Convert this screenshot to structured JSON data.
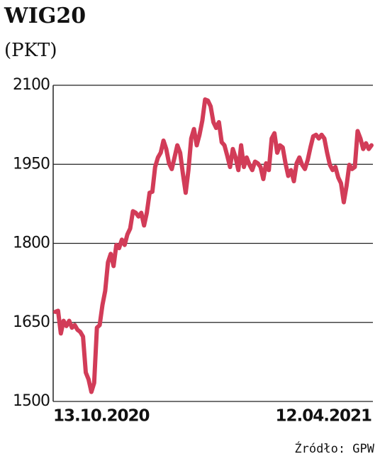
{
  "chart_data": {
    "type": "line",
    "title": "WIG20",
    "subtitle": "(PKT)",
    "source": "Źródło: GPW",
    "categories": [
      "13.10.2020",
      null,
      null,
      null,
      null,
      null,
      null,
      null,
      null,
      null,
      null,
      null,
      null,
      null,
      null,
      null,
      null,
      null,
      null,
      null,
      null,
      null,
      null,
      null,
      null,
      null,
      null,
      null,
      null,
      null,
      null,
      null,
      null,
      null,
      null,
      null,
      null,
      null,
      null,
      null,
      null,
      null,
      null,
      null,
      null,
      null,
      null,
      null,
      null,
      null,
      null,
      null,
      null,
      null,
      null,
      null,
      null,
      null,
      null,
      null,
      null,
      null,
      null,
      null,
      null,
      null,
      null,
      null,
      null,
      null,
      null,
      null,
      null,
      null,
      null,
      null,
      null,
      null,
      null,
      null,
      null,
      null,
      null,
      null,
      null,
      null,
      null,
      null,
      null,
      null,
      null,
      null,
      null,
      null,
      null,
      null,
      null,
      null,
      null,
      null,
      null,
      null,
      null,
      null,
      null,
      null,
      null,
      null,
      null,
      null,
      null,
      null,
      null,
      null,
      "12.04.2021"
    ],
    "values": [
      1670,
      1672,
      1629,
      1653,
      1643,
      1653,
      1640,
      1645,
      1636,
      1632,
      1623,
      1555,
      1542,
      1518,
      1535,
      1640,
      1645,
      1683,
      1710,
      1764,
      1780,
      1757,
      1797,
      1791,
      1807,
      1797,
      1817,
      1828,
      1861,
      1858,
      1851,
      1858,
      1834,
      1858,
      1896,
      1898,
      1945,
      1963,
      1972,
      1995,
      1979,
      1952,
      1941,
      1963,
      1986,
      1972,
      1932,
      1896,
      1939,
      1999,
      2017,
      1986,
      2006,
      2033,
      2073,
      2071,
      2060,
      2030,
      2019,
      2030,
      1992,
      1986,
      1966,
      1945,
      1979,
      1963,
      1939,
      1986,
      1945,
      1963,
      1949,
      1939,
      1955,
      1952,
      1945,
      1922,
      1952,
      1939,
      1999,
      2009,
      1972,
      1986,
      1982,
      1952,
      1928,
      1939,
      1918,
      1952,
      1963,
      1949,
      1941,
      1958,
      1982,
      2003,
      2006,
      1999,
      2006,
      1999,
      1972,
      1949,
      1939,
      1945,
      1925,
      1914,
      1878,
      1909,
      1949,
      1941,
      1945,
      2013,
      1999,
      1979,
      1990,
      1979,
      1986
    ],
    "color": "#d23c58",
    "ylim": [
      1500,
      2100
    ],
    "yticks": [
      1500,
      1650,
      1800,
      1950,
      2100
    ],
    "grid": true
  }
}
